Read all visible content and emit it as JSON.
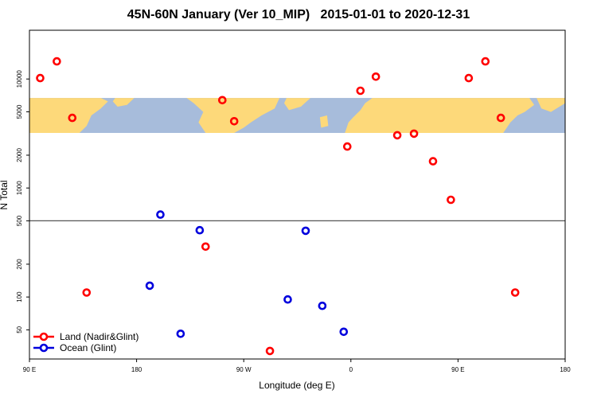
{
  "chart_data": {
    "type": "scatter",
    "title": "45N-60N January (Ver 10_MIP)   2015-01-01 to 2020-12-31",
    "xlabel": "Longitude (deg E)",
    "ylabel": "N Total",
    "x_ticks": [
      {
        "value": 90,
        "label": "90 E"
      },
      {
        "value": 180,
        "label": "180"
      },
      {
        "value": 270,
        "label": "90 W"
      },
      {
        "value": 360,
        "label": "0"
      },
      {
        "value": 450,
        "label": "90 E"
      },
      {
        "value": 540,
        "label": "180"
      }
    ],
    "xlim": [
      90,
      540
    ],
    "y_scale": "log",
    "ylim": [
      27,
      28000
    ],
    "y_ticks": [
      {
        "value": 50,
        "label": "50"
      },
      {
        "value": 100,
        "label": "100"
      },
      {
        "value": 200,
        "label": "200"
      },
      {
        "value": 500,
        "label": "500"
      },
      {
        "value": 1000,
        "label": "1000"
      },
      {
        "value": 2000,
        "label": "2000"
      },
      {
        "value": 5000,
        "label": "5000"
      },
      {
        "value": 10000,
        "label": "10000"
      }
    ],
    "reference_line_y": 500,
    "map_strip": {
      "y_range": [
        3200,
        6700
      ],
      "land_color": "#FDD97A",
      "ocean_color": "#A7BCDB"
    },
    "series": [
      {
        "name": "Land (Nadir&Glint)",
        "color": "#FF0000",
        "points": [
          {
            "x": 99,
            "y": 10200
          },
          {
            "x": 113,
            "y": 14500
          },
          {
            "x": 126,
            "y": 4400
          },
          {
            "x": 138,
            "y": 110
          },
          {
            "x": 252,
            "y": 6400
          },
          {
            "x": 262,
            "y": 4100
          },
          {
            "x": 238,
            "y": 290
          },
          {
            "x": 292,
            "y": 32
          },
          {
            "x": 357,
            "y": 2400
          },
          {
            "x": 368,
            "y": 7800
          },
          {
            "x": 381,
            "y": 10500
          },
          {
            "x": 399,
            "y": 3050
          },
          {
            "x": 413,
            "y": 3150
          },
          {
            "x": 429,
            "y": 1760
          },
          {
            "x": 444,
            "y": 780
          },
          {
            "x": 459,
            "y": 10200
          },
          {
            "x": 473,
            "y": 14500
          },
          {
            "x": 486,
            "y": 4400
          },
          {
            "x": 498,
            "y": 110
          }
        ]
      },
      {
        "name": "Ocean (Glint)",
        "color": "#0000DD",
        "points": [
          {
            "x": 200,
            "y": 570
          },
          {
            "x": 233,
            "y": 410
          },
          {
            "x": 191,
            "y": 127
          },
          {
            "x": 217,
            "y": 46
          },
          {
            "x": 307,
            "y": 95
          },
          {
            "x": 322,
            "y": 405
          },
          {
            "x": 336,
            "y": 83
          },
          {
            "x": 354,
            "y": 48
          }
        ]
      }
    ],
    "legend": {
      "position": "bottom-left"
    }
  }
}
